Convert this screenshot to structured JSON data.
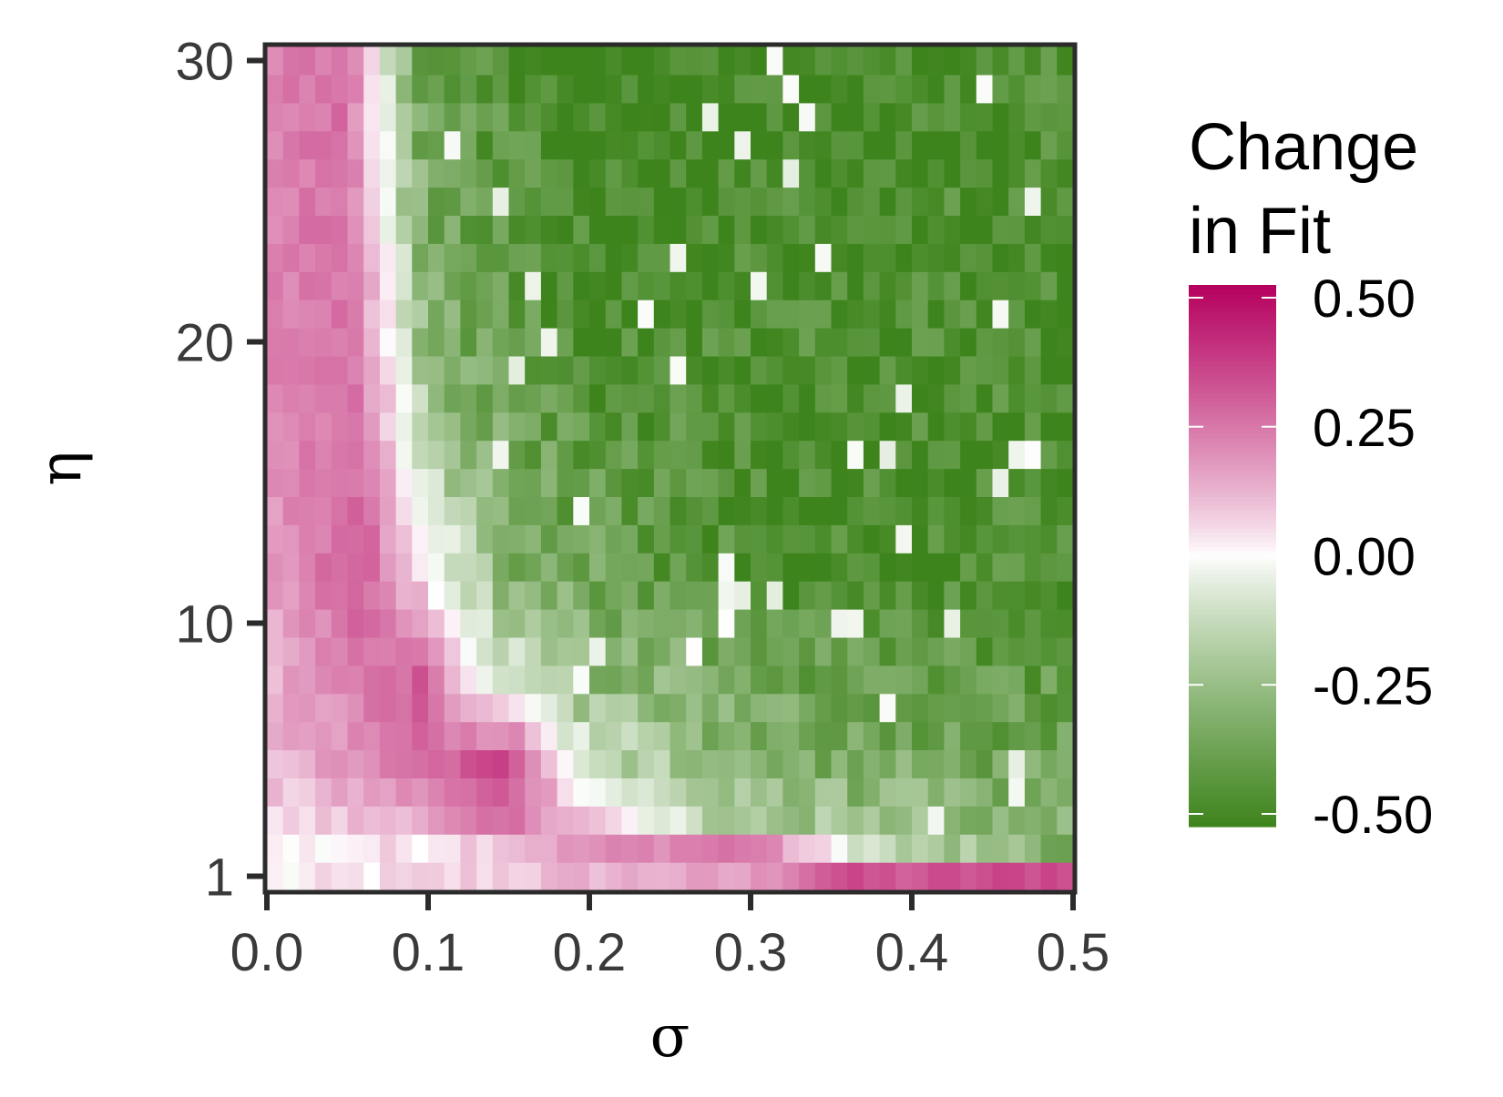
{
  "chart_data": {
    "type": "heatmap",
    "title": "",
    "xlabel": "σ",
    "ylabel": "η",
    "x_range": [
      0.0,
      0.5
    ],
    "y_range": [
      1,
      30
    ],
    "x_ticks": [
      0.0,
      0.1,
      0.2,
      0.3,
      0.4,
      0.5
    ],
    "x_tick_labels": [
      "0.0",
      "0.1",
      "0.2",
      "0.3",
      "0.4",
      "0.5"
    ],
    "y_ticks": [
      1,
      10,
      20,
      30
    ],
    "y_tick_labels": [
      "1",
      "10",
      "20",
      "30"
    ],
    "grid": "50 sigma steps × 30 eta steps (sampled)",
    "value_range": [
      -0.5,
      0.5
    ],
    "legend": {
      "title_lines": [
        "Change",
        "in Fit"
      ],
      "ticks": [
        0.5,
        0.25,
        0.0,
        -0.25,
        -0.5
      ],
      "tick_labels": [
        "0.50",
        "0.25",
        "0.00",
        "-0.25",
        "-0.50"
      ],
      "colors": {
        "high": "#B5005E",
        "mid": "#FFFFFF",
        "low": "#3E841C"
      },
      "placement": "right"
    },
    "values_by_eta": [
      {
        "eta": 1,
        "values_at_sigma": {
          "0.0": 0.0,
          "0.1": 0.05,
          "0.2": 0.12,
          "0.3": 0.15,
          "0.35": 0.32,
          "0.4": 0.3,
          "0.5": 0.35
        }
      },
      {
        "eta": 2,
        "values_at_sigma": {
          "0.0": 0.0,
          "0.1": 0.05,
          "0.2": 0.18,
          "0.3": 0.25,
          "0.35": 0.0,
          "0.4": -0.2,
          "0.5": -0.3
        }
      },
      {
        "eta": 3,
        "values_at_sigma": {
          "0.0": 0.03,
          "0.1": 0.15,
          "0.15": 0.25,
          "0.2": 0.1,
          "0.25": -0.1,
          "0.3": -0.2,
          "0.5": -0.3
        }
      },
      {
        "eta": 5,
        "values_at_sigma": {
          "0.0": 0.1,
          "0.1": 0.25,
          "0.15": 0.35,
          "0.2": -0.1,
          "0.3": -0.3,
          "0.5": -0.35
        }
      },
      {
        "eta": 8,
        "values_at_sigma": {
          "0.0": 0.12,
          "0.1": 0.3,
          "0.13": 0.0,
          "0.2": -0.25,
          "0.3": -0.35,
          "0.5": -0.4
        }
      },
      {
        "eta": 12,
        "values_at_sigma": {
          "0.0": 0.15,
          "0.06": 0.3,
          "0.1": 0.0,
          "0.15": -0.3,
          "0.3": -0.45,
          "0.5": -0.45
        }
      },
      {
        "eta": 20,
        "values_at_sigma": {
          "0.0": 0.2,
          "0.05": 0.25,
          "0.08": 0.0,
          "0.1": -0.3,
          "0.2": -0.45,
          "0.5": -0.45
        }
      },
      {
        "eta": 30,
        "values_at_sigma": {
          "0.0": 0.22,
          "0.05": 0.25,
          "0.07": 0.0,
          "0.09": -0.35,
          "0.2": -0.5,
          "0.5": -0.45
        }
      }
    ]
  }
}
